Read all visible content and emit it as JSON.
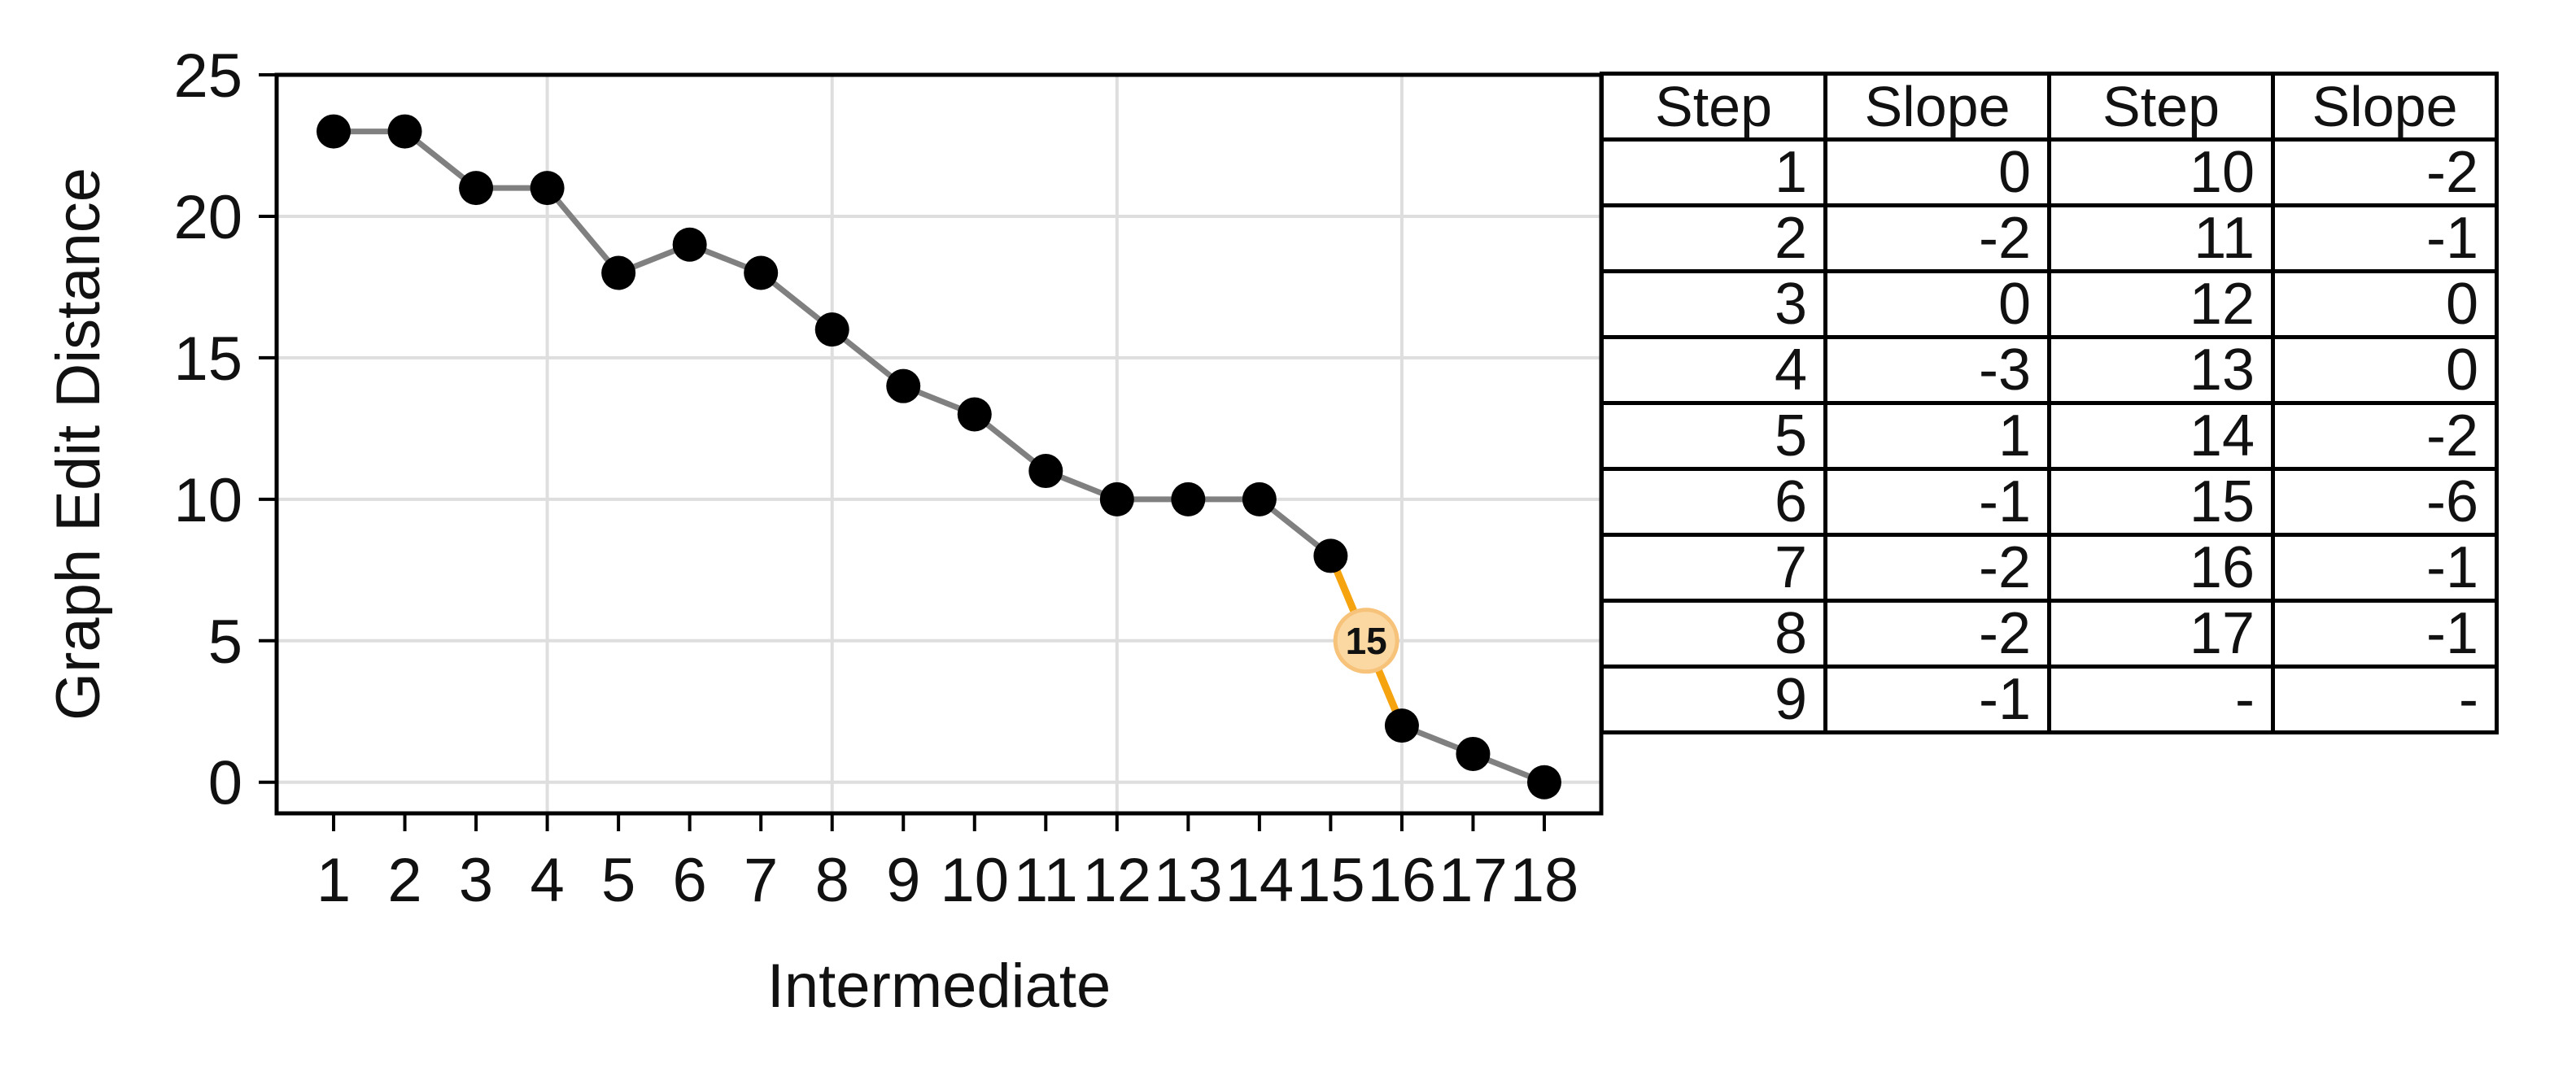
{
  "chart_data": [
    {
      "type": "line",
      "xlabel": "Intermediate",
      "ylabel": "Graph Edit Distance",
      "x": [
        1,
        2,
        3,
        4,
        5,
        6,
        7,
        8,
        9,
        10,
        11,
        12,
        13,
        14,
        15,
        16,
        17,
        18
      ],
      "y": [
        23,
        23,
        21,
        21,
        18,
        19,
        18,
        16,
        14,
        13,
        11,
        10,
        10,
        10,
        8,
        2,
        1,
        0
      ],
      "xlim": [
        0.2,
        18.8
      ],
      "ylim": [
        -1.1,
        25
      ],
      "yticks": [
        0,
        5,
        10,
        15,
        20,
        25
      ],
      "grid": true,
      "series_color": "#808080",
      "point_color": "#000000",
      "highlight": {
        "step": 15,
        "label": "15",
        "from_x": 15,
        "to_x": 16,
        "color": "#f5a30f",
        "marker_fill": "#fbd8a2"
      }
    },
    {
      "type": "table",
      "columns": [
        "Step",
        "Slope",
        "Step",
        "Slope"
      ],
      "rows": [
        [
          "1",
          "0",
          "10",
          "-2"
        ],
        [
          "2",
          "-2",
          "11",
          "-1"
        ],
        [
          "3",
          "0",
          "12",
          "0"
        ],
        [
          "4",
          "-3",
          "13",
          "0"
        ],
        [
          "5",
          "1",
          "14",
          "-2"
        ],
        [
          "6",
          "-1",
          "15",
          "-6"
        ],
        [
          "7",
          "-2",
          "16",
          "-1"
        ],
        [
          "8",
          "-2",
          "17",
          "-1"
        ],
        [
          "9",
          "-1",
          "-",
          "-"
        ]
      ]
    }
  ]
}
